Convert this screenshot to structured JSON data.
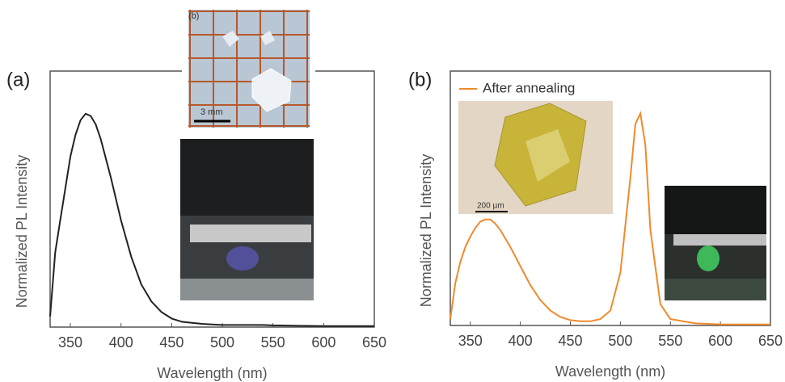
{
  "chart_data": [
    {
      "type": "line",
      "panel_label": "(a)",
      "xlabel": "Wavelength (nm)",
      "ylabel": "Normalized PL Intensity",
      "x": [
        330,
        335,
        340,
        345,
        350,
        355,
        360,
        365,
        370,
        375,
        380,
        390,
        400,
        410,
        420,
        430,
        440,
        450,
        460,
        470,
        480,
        490,
        500,
        510,
        515,
        520,
        525,
        530,
        540,
        550,
        575,
        600,
        625,
        650
      ],
      "values": [
        0.05,
        0.35,
        0.5,
        0.65,
        0.8,
        0.9,
        0.97,
        1.0,
        0.99,
        0.95,
        0.88,
        0.7,
        0.5,
        0.33,
        0.2,
        0.12,
        0.07,
        0.04,
        0.025,
        0.02,
        0.015,
        0.012,
        0.01,
        0.01,
        0.01,
        0.01,
        0.01,
        0.01,
        0.01,
        0.008,
        0.006,
        0.005,
        0.005,
        0.005
      ],
      "color": "#222222",
      "xlim": [
        330,
        650
      ],
      "ylim": [
        0,
        1.2
      ],
      "xticks": [
        350,
        400,
        450,
        500,
        550,
        600,
        650
      ],
      "inset_labels": [
        "(b)",
        "3 mm"
      ]
    },
    {
      "type": "line",
      "panel_label": "(b)",
      "xlabel": "Wavelength (nm)",
      "ylabel": "Normalized PL Intensity",
      "x": [
        330,
        335,
        340,
        345,
        350,
        355,
        360,
        365,
        370,
        375,
        380,
        390,
        400,
        410,
        420,
        430,
        440,
        450,
        460,
        470,
        480,
        490,
        500,
        510,
        515,
        520,
        525,
        530,
        540,
        550,
        575,
        600,
        625,
        650
      ],
      "series": [
        {
          "name": "After annealing",
          "color": "#f08a2c",
          "values": [
            0.03,
            0.2,
            0.3,
            0.37,
            0.42,
            0.46,
            0.49,
            0.5,
            0.5,
            0.48,
            0.45,
            0.37,
            0.28,
            0.19,
            0.12,
            0.07,
            0.04,
            0.025,
            0.02,
            0.02,
            0.03,
            0.07,
            0.25,
            0.7,
            0.95,
            1.0,
            0.85,
            0.45,
            0.1,
            0.03,
            0.01,
            0.005,
            0.005,
            0.005
          ]
        }
      ],
      "xlim": [
        330,
        650
      ],
      "ylim": [
        0,
        1.2
      ],
      "xticks": [
        350,
        400,
        450,
        500,
        550,
        600,
        650
      ],
      "legend": "upper left",
      "inset_labels": [
        "200 µm"
      ]
    }
  ]
}
